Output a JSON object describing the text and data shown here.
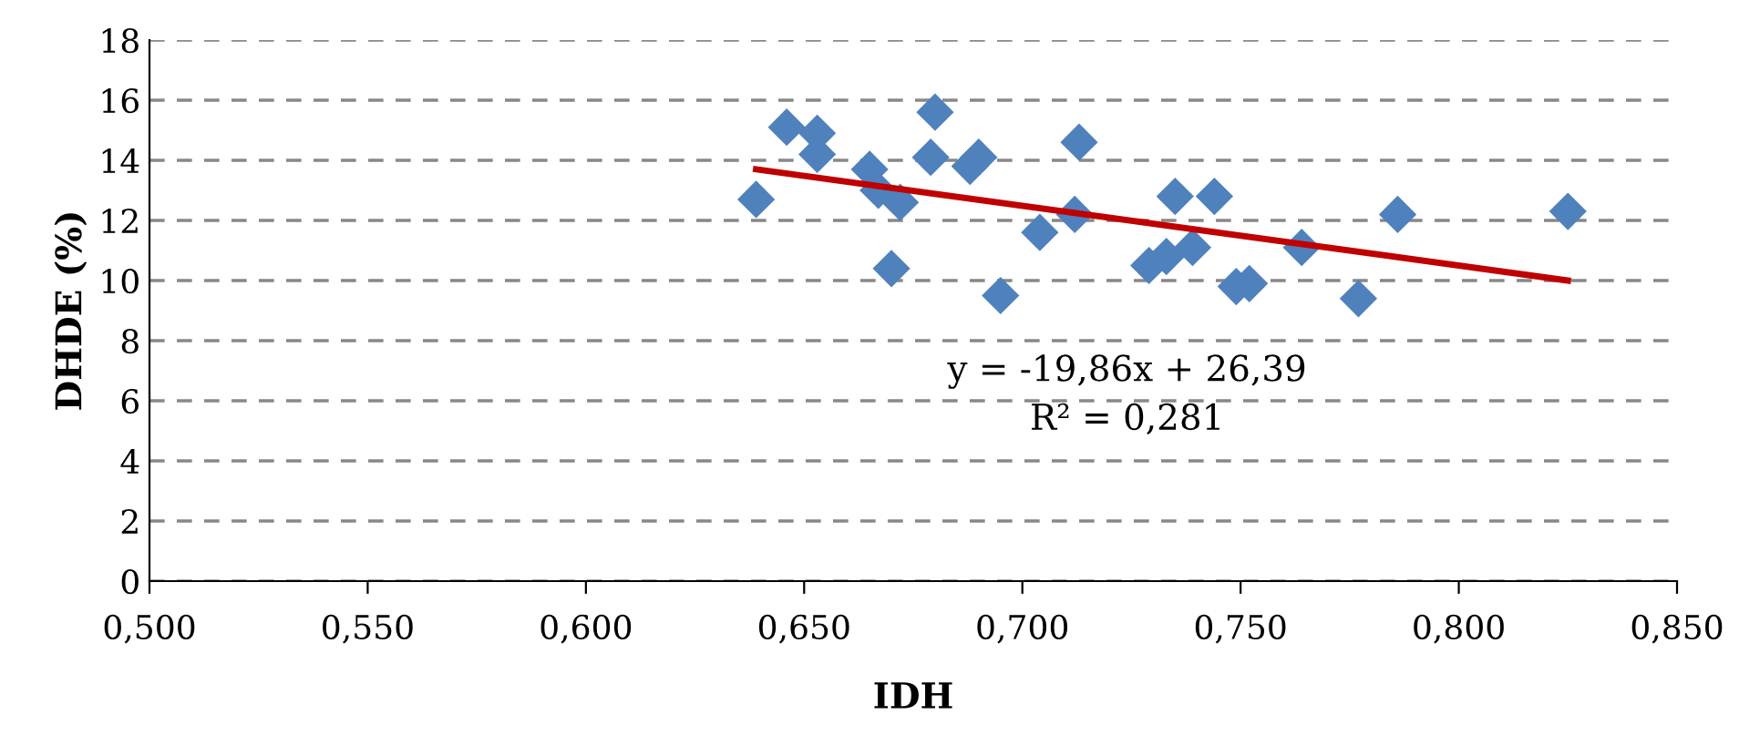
{
  "chart_data": {
    "type": "scatter",
    "xlabel": "IDH",
    "ylabel": "DHDE (%)",
    "grid": "y",
    "legend": false,
    "xlim": [
      0.5,
      0.85
    ],
    "xticks": [
      {
        "value": 0.5,
        "label": "0,500"
      },
      {
        "value": 0.55,
        "label": "0,550"
      },
      {
        "value": 0.6,
        "label": "0,600"
      },
      {
        "value": 0.65,
        "label": "0,650"
      },
      {
        "value": 0.7,
        "label": "0,700"
      },
      {
        "value": 0.75,
        "label": "0,750"
      },
      {
        "value": 0.8,
        "label": "0,800"
      },
      {
        "value": 0.85,
        "label": "0,850"
      }
    ],
    "ylim": [
      0,
      18
    ],
    "yticks": [
      0,
      2,
      4,
      6,
      8,
      10,
      12,
      14,
      16,
      18
    ],
    "series": [
      {
        "marker": "diamond",
        "color": "#4f81bd",
        "x": [
          0.639,
          0.646,
          0.653,
          0.653,
          0.665,
          0.667,
          0.672,
          0.67,
          0.68,
          0.679,
          0.688,
          0.69,
          0.695,
          0.704,
          0.712,
          0.713,
          0.729,
          0.733,
          0.735,
          0.739,
          0.744,
          0.749,
          0.752,
          0.764,
          0.777,
          0.786,
          0.825
        ],
        "values": [
          12.7,
          15.1,
          14.9,
          14.2,
          13.7,
          13.0,
          12.6,
          10.4,
          15.6,
          14.1,
          13.8,
          14.1,
          9.5,
          11.6,
          12.2,
          14.6,
          10.5,
          10.8,
          12.8,
          11.1,
          12.8,
          9.8,
          9.9,
          11.1,
          9.4,
          12.2,
          12.3
        ]
      },
      {
        "type": "line",
        "color": "#c00000",
        "x": [
          0.639,
          0.825
        ],
        "values": [
          13.7,
          10.0
        ]
      }
    ],
    "annotations": [
      "y = -19,86x + 26,39",
      "R² = 0,281"
    ]
  }
}
